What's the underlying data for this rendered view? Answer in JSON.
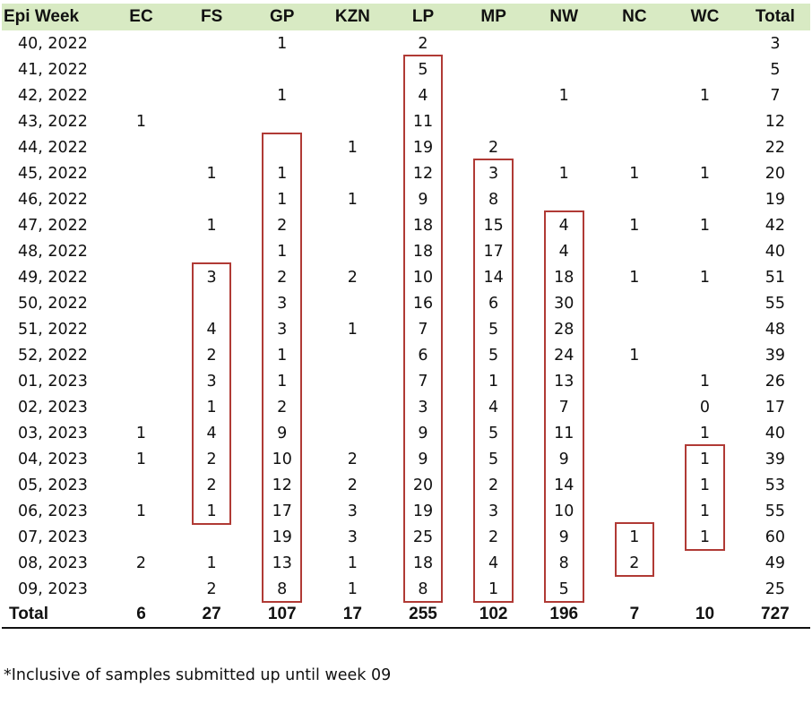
{
  "table": {
    "headers": [
      "Epi Week",
      "EC",
      "FS",
      "GP",
      "KZN",
      "LP",
      "MP",
      "NW",
      "NC",
      "WC",
      "Total"
    ],
    "rows": [
      [
        "40, 2022",
        "",
        "",
        "1",
        "",
        "2",
        "",
        "",
        "",
        "",
        "3"
      ],
      [
        "41, 2022",
        "",
        "",
        "",
        "",
        "5",
        "",
        "",
        "",
        "",
        "5"
      ],
      [
        "42, 2022",
        "",
        "",
        "1",
        "",
        "4",
        "",
        "1",
        "",
        "1",
        "7"
      ],
      [
        "43, 2022",
        "1",
        "",
        "",
        "",
        "11",
        "",
        "",
        "",
        "",
        "12"
      ],
      [
        "44, 2022",
        "",
        "",
        "",
        "1",
        "19",
        "2",
        "",
        "",
        "",
        "22"
      ],
      [
        "45, 2022",
        "",
        "1",
        "1",
        "",
        "12",
        "3",
        "1",
        "1",
        "1",
        "20"
      ],
      [
        "46, 2022",
        "",
        "",
        "1",
        "1",
        "9",
        "8",
        "",
        "",
        "",
        "19"
      ],
      [
        "47, 2022",
        "",
        "1",
        "2",
        "",
        "18",
        "15",
        "4",
        "1",
        "1",
        "42"
      ],
      [
        "48, 2022",
        "",
        "",
        "1",
        "",
        "18",
        "17",
        "4",
        "",
        "",
        "40"
      ],
      [
        "49, 2022",
        "",
        "3",
        "2",
        "2",
        "10",
        "14",
        "18",
        "1",
        "1",
        "51"
      ],
      [
        "50, 2022",
        "",
        "",
        "3",
        "",
        "16",
        "6",
        "30",
        "",
        "",
        "55"
      ],
      [
        "51, 2022",
        "",
        "4",
        "3",
        "1",
        "7",
        "5",
        "28",
        "",
        "",
        "48"
      ],
      [
        "52, 2022",
        "",
        "2",
        "1",
        "",
        "6",
        "5",
        "24",
        "1",
        "",
        "39"
      ],
      [
        "01, 2023",
        "",
        "3",
        "1",
        "",
        "7",
        "1",
        "13",
        "",
        "1",
        "26"
      ],
      [
        "02, 2023",
        "",
        "1",
        "2",
        "",
        "3",
        "4",
        "7",
        "",
        "0",
        "17"
      ],
      [
        "03, 2023",
        "1",
        "4",
        "9",
        "",
        "9",
        "5",
        "11",
        "",
        "1",
        "40"
      ],
      [
        "04, 2023",
        "1",
        "2",
        "10",
        "2",
        "9",
        "5",
        "9",
        "",
        "1",
        "39"
      ],
      [
        "05, 2023",
        "",
        "2",
        "12",
        "2",
        "20",
        "2",
        "14",
        "",
        "1",
        "53"
      ],
      [
        "06, 2023",
        "1",
        "1",
        "17",
        "3",
        "19",
        "3",
        "10",
        "",
        "1",
        "55"
      ],
      [
        "07, 2023",
        "",
        "",
        "19",
        "3",
        "25",
        "2",
        "9",
        "1",
        "1",
        "60"
      ],
      [
        "08, 2023",
        "2",
        "1",
        "13",
        "1",
        "18",
        "4",
        "8",
        "2",
        "",
        "49"
      ],
      [
        "09, 2023",
        "",
        "2",
        "8",
        "1",
        "8",
        "1",
        "5",
        "",
        "",
        "25"
      ]
    ],
    "totals": [
      "Total",
      "6",
      "27",
      "107",
      "17",
      "255",
      "102",
      "196",
      "7",
      "10",
      "727"
    ],
    "header_color": "#d8eac3",
    "highlight_color": "#b03a35",
    "highlights": [
      {
        "column": "FS",
        "from_row": "49, 2022",
        "to_row": "06, 2023"
      },
      {
        "column": "GP",
        "from_row": "44, 2022",
        "to_row": "09, 2023"
      },
      {
        "column": "LP",
        "from_row": "41, 2022",
        "to_row": "09, 2023"
      },
      {
        "column": "MP",
        "from_row": "45, 2022",
        "to_row": "09, 2023"
      },
      {
        "column": "NW",
        "from_row": "47, 2022",
        "to_row": "09, 2023"
      },
      {
        "column": "NC",
        "from_row": "07, 2023",
        "to_row": "08, 2023"
      },
      {
        "column": "WC",
        "from_row": "04, 2023",
        "to_row": "07, 2023"
      }
    ]
  },
  "footnote": "*Inclusive of samples submitted up until week 09"
}
